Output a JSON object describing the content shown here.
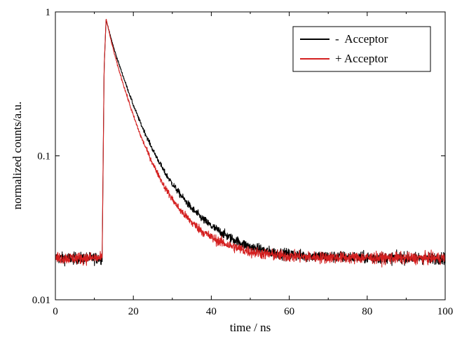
{
  "chart_data": {
    "type": "line",
    "xlabel": "time / ns",
    "ylabel": "normalized counts/a.u.",
    "xlim": [
      0,
      100
    ],
    "ylim": [
      0.01,
      1
    ],
    "yscale": "log",
    "x_ticks": [
      0,
      20,
      40,
      60,
      80,
      100
    ],
    "x_tick_labels": [
      "0",
      "20",
      "40",
      "60",
      "80",
      "100"
    ],
    "y_ticks": [
      0.01,
      0.1,
      1
    ],
    "y_tick_labels": [
      "0.01",
      "0.1",
      "1"
    ],
    "grid": false,
    "legend_position": "top-right",
    "series": [
      {
        "name": "-  Acceptor",
        "color": "#000000",
        "x": [
          0,
          5,
          10,
          12,
          12.5,
          13,
          14,
          15,
          16,
          18,
          20,
          22,
          25,
          28,
          30,
          32,
          35,
          38,
          40,
          42,
          45,
          48,
          50,
          55,
          60,
          65,
          70,
          80,
          90,
          100
        ],
        "y": [
          0.0195,
          0.0195,
          0.0195,
          0.0195,
          0.4,
          0.88,
          0.7,
          0.56,
          0.46,
          0.32,
          0.225,
          0.165,
          0.11,
          0.077,
          0.064,
          0.054,
          0.043,
          0.036,
          0.0325,
          0.03,
          0.0268,
          0.0245,
          0.0233,
          0.0215,
          0.0207,
          0.0202,
          0.02,
          0.0197,
          0.0196,
          0.0195
        ]
      },
      {
        "name": "+ Acceptor",
        "color": "#d42020",
        "x": [
          0,
          5,
          10,
          12,
          12.5,
          13,
          14,
          15,
          16,
          18,
          20,
          22,
          25,
          28,
          30,
          32,
          35,
          38,
          40,
          42,
          45,
          48,
          50,
          55,
          60,
          65,
          70,
          80,
          90,
          100
        ],
        "y": [
          0.0195,
          0.0195,
          0.0195,
          0.0195,
          0.4,
          0.9,
          0.68,
          0.53,
          0.42,
          0.28,
          0.19,
          0.135,
          0.088,
          0.061,
          0.05,
          0.042,
          0.0345,
          0.0295,
          0.0272,
          0.0255,
          0.0237,
          0.0223,
          0.0216,
          0.0206,
          0.0201,
          0.0198,
          0.0197,
          0.0196,
          0.0195,
          0.0195
        ]
      }
    ]
  }
}
